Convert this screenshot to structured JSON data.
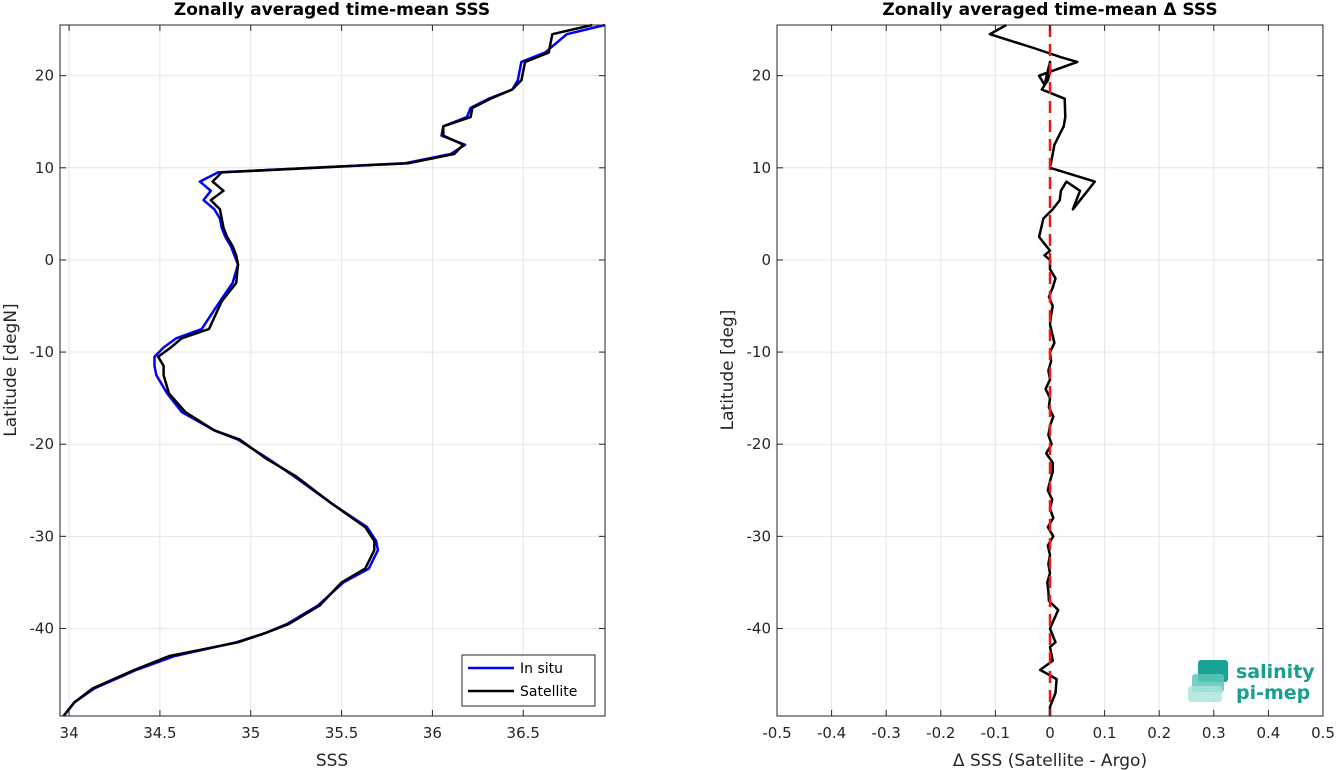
{
  "chart_data": [
    {
      "type": "line",
      "title": "Zonally averaged time-mean SSS",
      "xlabel": "SSS",
      "ylabel": "Latitude [degN]",
      "xlim": [
        33.95,
        36.95
      ],
      "ylim": [
        -49.5,
        25.5
      ],
      "xticks": [
        34,
        34.5,
        35,
        35.5,
        36,
        36.5
      ],
      "xtick_labels": [
        "34",
        "34.5",
        "35",
        "35.5",
        "36",
        "36.5"
      ],
      "yticks": [
        -40,
        -30,
        -20,
        -10,
        0,
        10,
        20
      ],
      "ytick_labels": [
        "-40",
        "-30",
        "-20",
        "-10",
        "0",
        "10",
        "20"
      ],
      "grid": true,
      "legend_position": "bottom-right",
      "series": [
        {
          "name": "In situ",
          "color": "#0000ff",
          "x": [
            33.97,
            34.03,
            34.14,
            34.37,
            34.58,
            34.92,
            35.08,
            35.2,
            35.37,
            35.51,
            35.65,
            35.7,
            35.69,
            35.64,
            35.45,
            35.24,
            35.09,
            34.93,
            34.8,
            34.62,
            34.54,
            34.48,
            34.47,
            34.47,
            34.52,
            34.59,
            34.73,
            34.83,
            34.9,
            34.93,
            34.91,
            34.89,
            34.86,
            34.84,
            34.83,
            34.8,
            34.74,
            34.78,
            34.72,
            34.82,
            35.85,
            36.1,
            36.18,
            36.05,
            36.06,
            36.19,
            36.21,
            36.31,
            36.44,
            36.47,
            36.49,
            36.62,
            36.74,
            36.95
          ],
          "y": [
            -49.5,
            -48,
            -46.5,
            -44.5,
            -43,
            -41.5,
            -40.5,
            -39.5,
            -37.5,
            -35,
            -33.5,
            -31.5,
            -30.5,
            -29,
            -26.5,
            -23.5,
            -21.5,
            -19.5,
            -18.5,
            -16.5,
            -14.5,
            -12.5,
            -11.5,
            -10.5,
            -9.5,
            -8.5,
            -7.5,
            -4.5,
            -2.5,
            -0.5,
            0.5,
            1.5,
            2.5,
            3.5,
            4.5,
            5.5,
            6.5,
            7.5,
            8.5,
            9.5,
            10.5,
            11.5,
            12.5,
            13.5,
            14.5,
            15.5,
            16.5,
            17.5,
            18.5,
            19.5,
            21.5,
            22.5,
            24.5,
            25.5
          ]
        },
        {
          "name": "Satellite",
          "color": "#000000",
          "x": [
            33.97,
            34.03,
            34.13,
            34.36,
            34.55,
            34.93,
            35.08,
            35.21,
            35.38,
            35.5,
            35.63,
            35.68,
            35.68,
            35.63,
            35.45,
            35.25,
            35.08,
            34.94,
            34.8,
            34.64,
            34.55,
            34.52,
            34.52,
            34.49,
            34.56,
            34.62,
            34.77,
            34.84,
            34.92,
            34.93,
            34.92,
            34.9,
            34.87,
            34.85,
            34.84,
            34.83,
            34.78,
            34.85,
            34.79,
            34.84,
            35.87,
            36.12,
            36.17,
            36.06,
            36.06,
            36.21,
            36.22,
            36.32,
            36.44,
            36.49,
            36.51,
            36.64,
            36.66,
            36.88
          ],
          "y": [
            -49.5,
            -48,
            -46.5,
            -44.5,
            -43,
            -41.5,
            -40.5,
            -39.5,
            -37.5,
            -35,
            -33.5,
            -31.5,
            -30.5,
            -29,
            -26.5,
            -23.5,
            -21.5,
            -19.5,
            -18.5,
            -16.5,
            -14.5,
            -12.5,
            -11.5,
            -10.5,
            -9.5,
            -8.5,
            -7.5,
            -4.5,
            -2.5,
            -0.5,
            0.5,
            1.5,
            2.5,
            3.5,
            4.5,
            5.5,
            6.5,
            7.5,
            8.5,
            9.5,
            10.5,
            11.5,
            12.5,
            13.5,
            14.5,
            15.5,
            16.5,
            17.5,
            18.5,
            19.5,
            21.5,
            22.5,
            24.5,
            25.5
          ]
        }
      ]
    },
    {
      "type": "line",
      "title": "Zonally averaged time-mean Δ SSS",
      "xlabel": "Δ SSS (Satellite - Argo)",
      "ylabel": "Latitude [deg]",
      "xlim": [
        -0.5,
        0.5
      ],
      "ylim": [
        -49.5,
        25.5
      ],
      "xticks": [
        -0.5,
        -0.4,
        -0.3,
        -0.2,
        -0.1,
        0,
        0.1,
        0.2,
        0.3,
        0.4,
        0.5
      ],
      "xtick_labels": [
        "-0.5",
        "-0.4",
        "-0.3",
        "-0.2",
        "-0.1",
        "0",
        "0.1",
        "0.2",
        "0.3",
        "0.4",
        "0.5"
      ],
      "yticks": [
        -40,
        -30,
        -20,
        -10,
        0,
        10,
        20
      ],
      "ytick_labels": [
        "-40",
        "-30",
        "-20",
        "-10",
        "0",
        "10",
        "20"
      ],
      "grid": true,
      "reference_line": {
        "x": 0,
        "color": "#e31a1c",
        "style": "dashed"
      },
      "series": [
        {
          "name": "",
          "color": "#000000",
          "x": [
            0.0,
            0.0,
            0.01,
            0.012,
            -0.018,
            0.005,
            0.0,
            0.01,
            0.0,
            0.015,
            -0.002,
            -0.003,
            -0.005,
            0.0,
            -0.003,
            0.0,
            -0.004,
            0.006,
            -0.004,
            0.006,
            0.0,
            0.004,
            -0.004,
            0.0,
            0.005,
            0.005,
            -0.007,
            0.003,
            -0.003,
            0.0,
            0.006,
            -0.002,
            0.0,
            -0.008,
            0.0,
            -0.003,
            0.002,
            0.0,
            0.008,
            0.004,
            0.0,
            0.002,
            0.005,
            -0.002,
            0.005,
            0.01,
            0.0,
            0.0,
            -0.01,
            0.0,
            -0.02,
            -0.012,
            0.005,
            0.018,
            0.02,
            0.03,
            0.055,
            0.042,
            0.082,
            0.0,
            0.005,
            0.008,
            0.025,
            0.028,
            0.027,
            -0.015,
            -0.004,
            0.0,
            0.0,
            -0.01,
            -0.02,
            0.05,
            0.02,
            -0.03,
            -0.11,
            -0.08
          ],
          "y": [
            -49.5,
            -48.5,
            -47,
            -45.5,
            -44.5,
            -43.5,
            -42,
            -41.5,
            -40,
            -38,
            -37,
            -36,
            -35,
            -34,
            -33,
            -32,
            -31,
            -30,
            -29,
            -28,
            -27,
            -26,
            -25,
            -24,
            -23,
            -22,
            -21,
            -20,
            -19,
            -18,
            -17,
            -16,
            -15,
            -14,
            -13,
            -12,
            -11,
            -10,
            -9,
            -8,
            -7,
            -6,
            -5,
            -4,
            -3,
            -2,
            -1,
            0,
            0.5,
            1,
            2.5,
            4.5,
            5.5,
            6.5,
            7.5,
            8.5,
            7.5,
            5.5,
            8.5,
            10,
            11.5,
            12.5,
            14.5,
            15.5,
            17.5,
            18.5,
            19.5,
            20.5,
            21.5,
            19,
            20,
            21.5,
            22,
            23,
            24.5,
            25.5
          ]
        }
      ]
    }
  ],
  "legend": {
    "items": [
      "In situ",
      "Satellite"
    ]
  },
  "logo": {
    "line1": "salinity",
    "line2": "pi-mep"
  }
}
